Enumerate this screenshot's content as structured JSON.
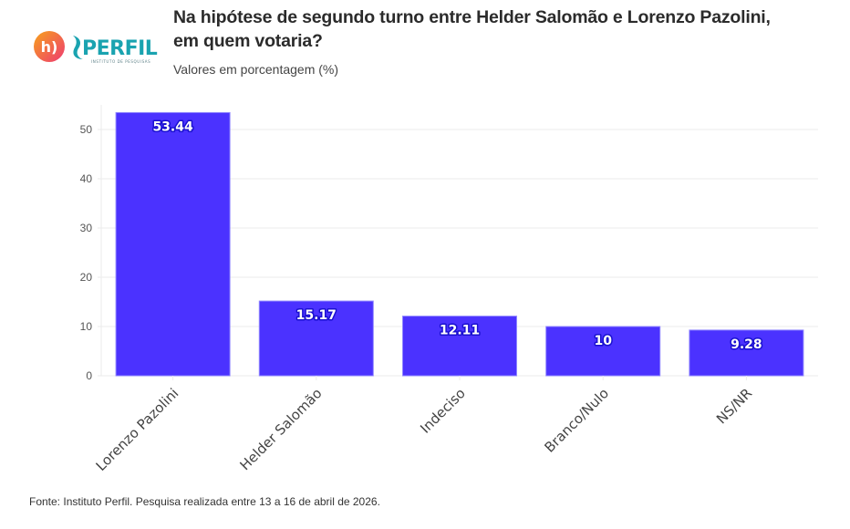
{
  "header": {
    "title_line1": "Na hipótese de segundo turno entre Helder Salomão e Lorenzo Pazolini,",
    "title_line2": "em quem votaria?",
    "subtitle": "Valores em porcentagem (%)"
  },
  "logo": {
    "badge_text": "h)",
    "brand_text": "PERFIL",
    "tagline": "INSTITUTO DE PESQUISAS"
  },
  "footer": {
    "source": "Fonte: Instituto Perfil. Pesquisa realizada entre 13 a 16 de abril de 2026."
  },
  "colors": {
    "bar": "#4b32ff",
    "bar_edge": "#8f86ff",
    "grid": "#ebebeb",
    "logo_orange": "#f5822a",
    "logo_pink": "#ef3b6e",
    "logo_teal": "#1aa3b0"
  },
  "chart_data": {
    "type": "bar",
    "title": "Na hipótese de segundo turno entre Helder Salomão e Lorenzo Pazolini, em quem votaria?",
    "subtitle": "Valores em porcentagem (%)",
    "xlabel": "",
    "ylabel": "",
    "categories": [
      "Lorenzo Pazolini",
      "Helder Salomão",
      "Indeciso",
      "Branco/Nulo",
      "NS/NR"
    ],
    "values": [
      53.44,
      15.17,
      12.11,
      10,
      9.28
    ],
    "value_labels": [
      "53.44",
      "15.17",
      "12.11",
      "10",
      "9.28"
    ],
    "ylim": [
      0,
      55
    ],
    "yticks": [
      0,
      10,
      20,
      30,
      40,
      50
    ],
    "ytick_labels": [
      "0",
      "10",
      "20",
      "30",
      "40",
      "50"
    ],
    "grid": true,
    "legend": "none"
  }
}
